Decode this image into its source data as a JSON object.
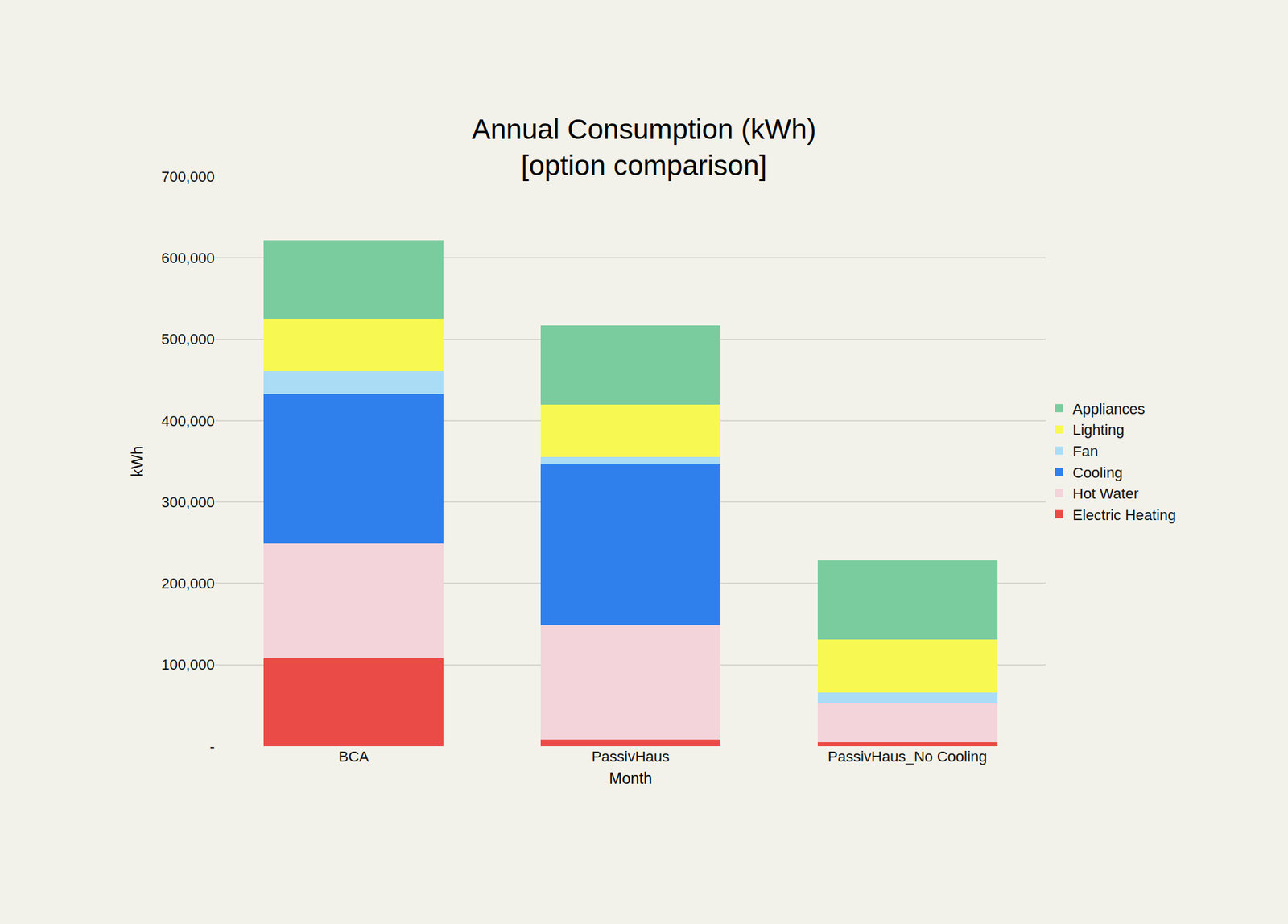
{
  "chart_data": {
    "type": "bar",
    "title": "Annual Consumption (kWh)\n[option comparison]",
    "x_label": "Month",
    "y_label": "kWh",
    "categories": [
      "BCA",
      "PassivHaus",
      "PassivHaus_No Cooling"
    ],
    "stacked": true,
    "grid": true,
    "legend": "right",
    "ylim": [
      0,
      700000
    ],
    "yticks": [
      {
        "value": 0,
        "label": "-"
      },
      {
        "value": 100000,
        "label": "100,000"
      },
      {
        "value": 200000,
        "label": "200,000"
      },
      {
        "value": 300000,
        "label": "300,000"
      },
      {
        "value": 400000,
        "label": "400,000"
      },
      {
        "value": 500000,
        "label": "500,000"
      },
      {
        "value": 600000,
        "label": "600,000"
      },
      {
        "value": 700000,
        "label": "700,000"
      }
    ],
    "series": [
      {
        "name": "Electric Heating",
        "color": "#EB4B46",
        "values": [
          108000,
          8000,
          5000
        ]
      },
      {
        "name": "Hot Water",
        "color": "#F2D4DA",
        "values": [
          141000,
          141000,
          48000
        ]
      },
      {
        "name": "Cooling",
        "color": "#2F80ED",
        "values": [
          184000,
          197000,
          0
        ]
      },
      {
        "name": "Fan",
        "color": "#AADDF5",
        "values": [
          28000,
          9000,
          13000
        ]
      },
      {
        "name": "Lighting",
        "color": "#F8F852",
        "values": [
          64000,
          65000,
          65000
        ]
      },
      {
        "name": "Appliances",
        "color": "#7ACC9E",
        "values": [
          97000,
          97000,
          97000
        ]
      }
    ]
  }
}
